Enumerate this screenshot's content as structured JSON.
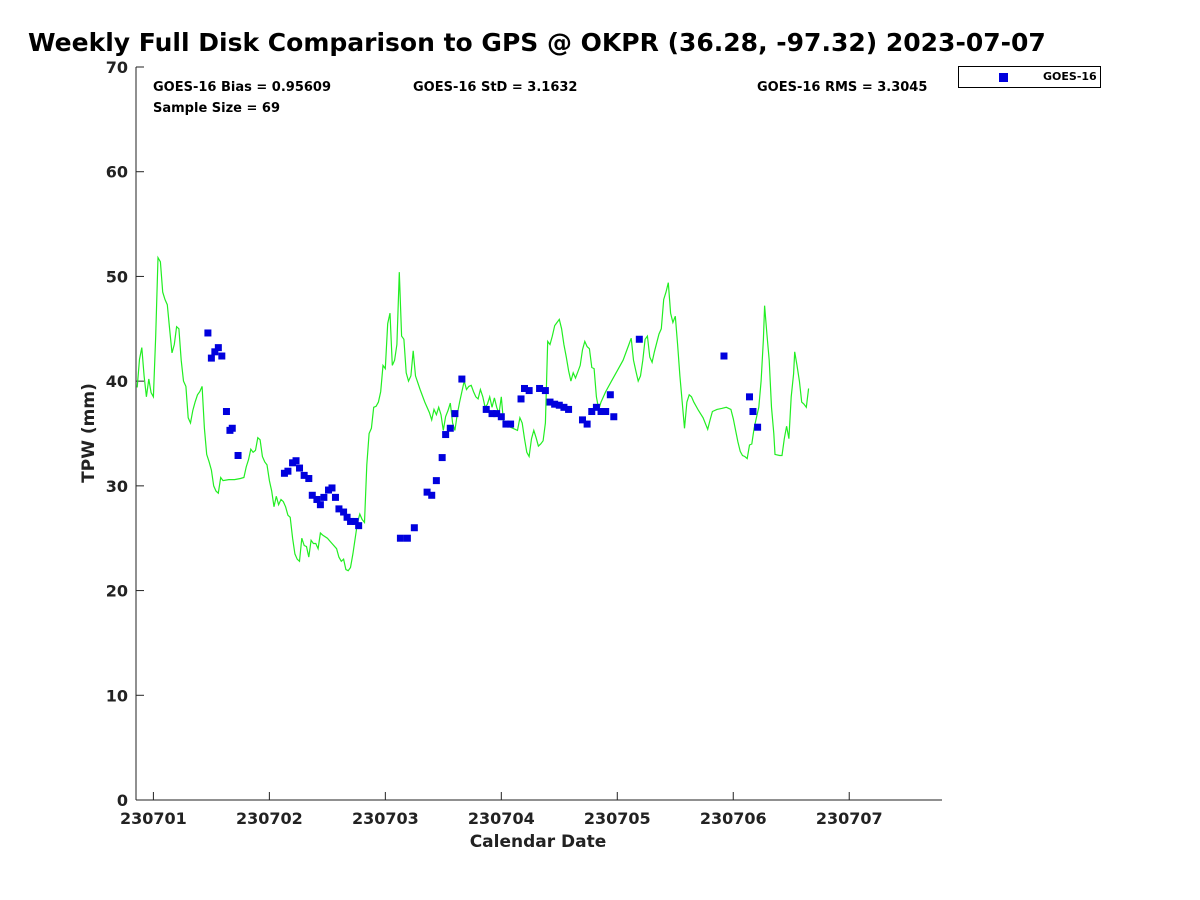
{
  "chart_data": {
    "type": "scatter",
    "title": "Weekly Full Disk Comparison to GPS @ OKPR (36.28, -97.32) 2023-07-07",
    "xlabel": "Calendar Date",
    "ylabel": "TPW (mm)",
    "ylim": [
      0,
      70
    ],
    "xlim": [
      -0.15,
      6.8
    ],
    "y_ticks": [
      0,
      10,
      20,
      30,
      40,
      50,
      60,
      70
    ],
    "x_ticks": [
      {
        "value": 0,
        "label": "230701"
      },
      {
        "value": 1,
        "label": "230702"
      },
      {
        "value": 2,
        "label": "230703"
      },
      {
        "value": 3,
        "label": "230704"
      },
      {
        "value": 4,
        "label": "230705"
      },
      {
        "value": 5,
        "label": "230706"
      },
      {
        "value": 6,
        "label": "230707"
      }
    ],
    "stats": {
      "bias": "GOES-16 Bias = 0.95609",
      "std": "GOES-16 StD = 3.1632",
      "rms": "GOES-16 RMS = 3.3045",
      "sample": "Sample Size = 69"
    },
    "legend": {
      "position": "top-right",
      "entries": [
        {
          "name": "GOES-16",
          "color": "#0000dd",
          "marker": "square"
        }
      ]
    },
    "gps_line": {
      "color": "#22ee22",
      "points": [
        [
          -0.14,
          39.4
        ],
        [
          -0.12,
          42.1
        ],
        [
          -0.1,
          43.2
        ],
        [
          -0.08,
          40.5
        ],
        [
          -0.06,
          38.5
        ],
        [
          -0.04,
          40.2
        ],
        [
          -0.02,
          38.9
        ],
        [
          0.0,
          38.5
        ],
        [
          0.02,
          44.3
        ],
        [
          0.04,
          51.8
        ],
        [
          0.06,
          51.4
        ],
        [
          0.08,
          48.5
        ],
        [
          0.1,
          47.8
        ],
        [
          0.12,
          47.3
        ],
        [
          0.14,
          45.0
        ],
        [
          0.16,
          42.7
        ],
        [
          0.18,
          43.5
        ],
        [
          0.2,
          45.2
        ],
        [
          0.22,
          45.0
        ],
        [
          0.24,
          42.0
        ],
        [
          0.26,
          40.0
        ],
        [
          0.28,
          39.5
        ],
        [
          0.3,
          36.5
        ],
        [
          0.32,
          36.0
        ],
        [
          0.34,
          37.2
        ],
        [
          0.36,
          38.0
        ],
        [
          0.38,
          38.7
        ],
        [
          0.4,
          39.0
        ],
        [
          0.42,
          39.5
        ],
        [
          0.44,
          35.5
        ],
        [
          0.46,
          33.0
        ],
        [
          0.48,
          32.3
        ],
        [
          0.5,
          31.5
        ],
        [
          0.52,
          30.0
        ],
        [
          0.54,
          29.5
        ],
        [
          0.56,
          29.3
        ],
        [
          0.58,
          30.8
        ],
        [
          0.6,
          30.5
        ],
        [
          0.65,
          30.6
        ],
        [
          0.7,
          30.6
        ],
        [
          0.75,
          30.7
        ],
        [
          0.78,
          30.8
        ],
        [
          0.8,
          31.8
        ],
        [
          0.82,
          32.5
        ],
        [
          0.84,
          33.5
        ],
        [
          0.86,
          33.2
        ],
        [
          0.88,
          33.4
        ],
        [
          0.9,
          34.6
        ],
        [
          0.92,
          34.4
        ],
        [
          0.94,
          32.8
        ],
        [
          0.96,
          32.3
        ],
        [
          0.98,
          32.0
        ],
        [
          1.0,
          30.5
        ],
        [
          1.02,
          29.5
        ],
        [
          1.04,
          28.0
        ],
        [
          1.06,
          29.0
        ],
        [
          1.08,
          28.2
        ],
        [
          1.1,
          28.7
        ],
        [
          1.12,
          28.5
        ],
        [
          1.14,
          28.0
        ],
        [
          1.16,
          27.2
        ],
        [
          1.18,
          27.0
        ],
        [
          1.2,
          25.0
        ],
        [
          1.22,
          23.5
        ],
        [
          1.24,
          23.0
        ],
        [
          1.26,
          22.8
        ],
        [
          1.28,
          25.0
        ],
        [
          1.3,
          24.3
        ],
        [
          1.32,
          24.2
        ],
        [
          1.34,
          23.2
        ],
        [
          1.36,
          24.8
        ],
        [
          1.38,
          24.5
        ],
        [
          1.4,
          24.5
        ],
        [
          1.42,
          24.0
        ],
        [
          1.44,
          25.5
        ],
        [
          1.46,
          25.3
        ],
        [
          1.5,
          25.0
        ],
        [
          1.54,
          24.5
        ],
        [
          1.58,
          24.0
        ],
        [
          1.6,
          23.2
        ],
        [
          1.62,
          22.8
        ],
        [
          1.64,
          23.0
        ],
        [
          1.66,
          22.0
        ],
        [
          1.68,
          21.9
        ],
        [
          1.7,
          22.2
        ],
        [
          1.72,
          23.5
        ],
        [
          1.74,
          25.0
        ],
        [
          1.76,
          26.5
        ],
        [
          1.78,
          27.3
        ],
        [
          1.8,
          26.8
        ],
        [
          1.82,
          26.5
        ],
        [
          1.84,
          32.0
        ],
        [
          1.86,
          35.0
        ],
        [
          1.88,
          35.5
        ],
        [
          1.9,
          37.5
        ],
        [
          1.92,
          37.6
        ],
        [
          1.94,
          38.0
        ],
        [
          1.96,
          39.0
        ],
        [
          1.98,
          41.5
        ],
        [
          2.0,
          41.2
        ],
        [
          2.02,
          45.5
        ],
        [
          2.04,
          46.5
        ],
        [
          2.06,
          41.5
        ],
        [
          2.08,
          42.0
        ],
        [
          2.1,
          43.5
        ],
        [
          2.12,
          50.4
        ],
        [
          2.14,
          44.3
        ],
        [
          2.16,
          44.0
        ],
        [
          2.18,
          40.8
        ],
        [
          2.2,
          40.0
        ],
        [
          2.22,
          40.5
        ],
        [
          2.24,
          42.9
        ],
        [
          2.26,
          40.5
        ],
        [
          2.3,
          39.2
        ],
        [
          2.34,
          38.0
        ],
        [
          2.38,
          37.0
        ],
        [
          2.4,
          36.3
        ],
        [
          2.42,
          37.3
        ],
        [
          2.44,
          36.8
        ],
        [
          2.46,
          37.5
        ],
        [
          2.48,
          36.8
        ],
        [
          2.5,
          35.3
        ],
        [
          2.52,
          36.6
        ],
        [
          2.54,
          37.2
        ],
        [
          2.56,
          37.9
        ],
        [
          2.58,
          36.0
        ],
        [
          2.6,
          35.3
        ],
        [
          2.62,
          36.8
        ],
        [
          2.64,
          38.0
        ],
        [
          2.66,
          39.0
        ],
        [
          2.68,
          40.0
        ],
        [
          2.7,
          39.2
        ],
        [
          2.72,
          39.5
        ],
        [
          2.74,
          39.6
        ],
        [
          2.76,
          39.0
        ],
        [
          2.78,
          38.5
        ],
        [
          2.8,
          38.3
        ],
        [
          2.82,
          39.2
        ],
        [
          2.84,
          38.5
        ],
        [
          2.86,
          37.5
        ],
        [
          2.88,
          37.8
        ],
        [
          2.9,
          38.5
        ],
        [
          2.92,
          37.5
        ],
        [
          2.94,
          38.4
        ],
        [
          2.96,
          37.5
        ],
        [
          2.98,
          36.9
        ],
        [
          3.0,
          38.5
        ],
        [
          3.02,
          36.0
        ],
        [
          3.06,
          35.7
        ],
        [
          3.1,
          35.5
        ],
        [
          3.14,
          35.3
        ],
        [
          3.16,
          36.5
        ],
        [
          3.18,
          36.0
        ],
        [
          3.2,
          34.5
        ],
        [
          3.22,
          33.2
        ],
        [
          3.24,
          32.8
        ],
        [
          3.26,
          34.5
        ],
        [
          3.28,
          35.3
        ],
        [
          3.3,
          34.6
        ],
        [
          3.32,
          33.8
        ],
        [
          3.34,
          34.0
        ],
        [
          3.36,
          34.3
        ],
        [
          3.38,
          36.0
        ],
        [
          3.4,
          43.8
        ],
        [
          3.42,
          43.5
        ],
        [
          3.44,
          44.3
        ],
        [
          3.46,
          45.3
        ],
        [
          3.48,
          45.6
        ],
        [
          3.5,
          45.9
        ],
        [
          3.52,
          45.0
        ],
        [
          3.54,
          43.5
        ],
        [
          3.56,
          42.3
        ],
        [
          3.58,
          41.0
        ],
        [
          3.6,
          40.0
        ],
        [
          3.62,
          40.8
        ],
        [
          3.64,
          40.3
        ],
        [
          3.66,
          40.9
        ],
        [
          3.68,
          41.5
        ],
        [
          3.7,
          43.0
        ],
        [
          3.72,
          43.8
        ],
        [
          3.74,
          43.3
        ],
        [
          3.76,
          43.1
        ],
        [
          3.78,
          41.3
        ],
        [
          3.8,
          41.2
        ],
        [
          3.82,
          38.5
        ],
        [
          3.84,
          37.3
        ],
        [
          3.86,
          38.0
        ],
        [
          3.9,
          39.0
        ],
        [
          3.95,
          40.0
        ],
        [
          4.0,
          41.0
        ],
        [
          4.05,
          42.0
        ],
        [
          4.1,
          43.5
        ],
        [
          4.12,
          44.1
        ],
        [
          4.14,
          42.0
        ],
        [
          4.16,
          41.0
        ],
        [
          4.18,
          40.0
        ],
        [
          4.2,
          40.5
        ],
        [
          4.22,
          42.0
        ],
        [
          4.24,
          44.0
        ],
        [
          4.26,
          44.3
        ],
        [
          4.28,
          42.3
        ],
        [
          4.3,
          41.8
        ],
        [
          4.32,
          42.8
        ],
        [
          4.36,
          44.5
        ],
        [
          4.38,
          45.0
        ],
        [
          4.4,
          47.8
        ],
        [
          4.42,
          48.5
        ],
        [
          4.44,
          49.4
        ],
        [
          4.46,
          46.5
        ],
        [
          4.48,
          45.6
        ],
        [
          4.5,
          46.2
        ],
        [
          4.52,
          43.5
        ],
        [
          4.54,
          40.5
        ],
        [
          4.56,
          38.0
        ],
        [
          4.58,
          35.5
        ],
        [
          4.6,
          38.0
        ],
        [
          4.62,
          38.7
        ],
        [
          4.64,
          38.5
        ],
        [
          4.66,
          38.0
        ],
        [
          4.7,
          37.2
        ],
        [
          4.74,
          36.5
        ],
        [
          4.78,
          35.4
        ],
        [
          4.8,
          36.3
        ],
        [
          4.82,
          37.1
        ],
        [
          4.86,
          37.3
        ],
        [
          4.9,
          37.4
        ],
        [
          4.94,
          37.5
        ],
        [
          4.98,
          37.3
        ],
        [
          5.0,
          36.4
        ],
        [
          5.02,
          35.3
        ],
        [
          5.04,
          34.2
        ],
        [
          5.06,
          33.3
        ],
        [
          5.08,
          32.9
        ],
        [
          5.1,
          32.8
        ],
        [
          5.12,
          32.6
        ],
        [
          5.14,
          33.9
        ],
        [
          5.16,
          34.0
        ],
        [
          5.18,
          35.5
        ],
        [
          5.2,
          36.5
        ],
        [
          5.22,
          37.5
        ],
        [
          5.24,
          40.0
        ],
        [
          5.26,
          44.0
        ],
        [
          5.27,
          47.2
        ],
        [
          5.29,
          44.5
        ],
        [
          5.31,
          42.0
        ],
        [
          5.33,
          37.5
        ],
        [
          5.35,
          35.0
        ],
        [
          5.36,
          33.0
        ],
        [
          5.4,
          32.9
        ],
        [
          5.42,
          32.9
        ],
        [
          5.44,
          34.5
        ],
        [
          5.46,
          35.7
        ],
        [
          5.48,
          34.5
        ],
        [
          5.5,
          38.5
        ],
        [
          5.52,
          40.7
        ],
        [
          5.53,
          42.8
        ],
        [
          5.55,
          41.5
        ],
        [
          5.57,
          40.0
        ],
        [
          5.59,
          38.0
        ],
        [
          5.61,
          37.8
        ],
        [
          5.63,
          37.5
        ],
        [
          5.65,
          39.3
        ]
      ]
    },
    "series": [
      {
        "name": "GOES-16",
        "color": "#0000dd",
        "points": [
          [
            0.47,
            44.6
          ],
          [
            0.5,
            42.2
          ],
          [
            0.53,
            42.8
          ],
          [
            0.56,
            43.2
          ],
          [
            0.59,
            42.4
          ],
          [
            0.63,
            37.1
          ],
          [
            0.66,
            35.3
          ],
          [
            0.68,
            35.5
          ],
          [
            0.73,
            32.9
          ],
          [
            1.13,
            31.2
          ],
          [
            1.16,
            31.4
          ],
          [
            1.2,
            32.2
          ],
          [
            1.23,
            32.4
          ],
          [
            1.26,
            31.7
          ],
          [
            1.3,
            31.0
          ],
          [
            1.34,
            30.7
          ],
          [
            1.37,
            29.1
          ],
          [
            1.41,
            28.7
          ],
          [
            1.44,
            28.2
          ],
          [
            1.47,
            28.9
          ],
          [
            1.51,
            29.6
          ],
          [
            1.54,
            29.8
          ],
          [
            1.57,
            28.9
          ],
          [
            1.6,
            27.8
          ],
          [
            1.64,
            27.5
          ],
          [
            1.67,
            27.0
          ],
          [
            1.7,
            26.6
          ],
          [
            1.74,
            26.6
          ],
          [
            1.77,
            26.2
          ],
          [
            2.13,
            25.0
          ],
          [
            2.19,
            25.0
          ],
          [
            2.25,
            26.0
          ],
          [
            2.36,
            29.4
          ],
          [
            2.4,
            29.1
          ],
          [
            2.44,
            30.5
          ],
          [
            2.49,
            32.7
          ],
          [
            2.52,
            34.9
          ],
          [
            2.56,
            35.5
          ],
          [
            2.6,
            36.9
          ],
          [
            2.66,
            40.2
          ],
          [
            2.87,
            37.3
          ],
          [
            2.92,
            36.9
          ],
          [
            2.96,
            36.9
          ],
          [
            3.0,
            36.6
          ],
          [
            3.04,
            35.9
          ],
          [
            3.08,
            35.9
          ],
          [
            3.17,
            38.3
          ],
          [
            3.2,
            39.3
          ],
          [
            3.24,
            39.1
          ],
          [
            3.33,
            39.3
          ],
          [
            3.38,
            39.1
          ],
          [
            3.42,
            38.0
          ],
          [
            3.46,
            37.8
          ],
          [
            3.5,
            37.7
          ],
          [
            3.54,
            37.5
          ],
          [
            3.58,
            37.3
          ],
          [
            3.7,
            36.3
          ],
          [
            3.74,
            35.9
          ],
          [
            3.78,
            37.1
          ],
          [
            3.82,
            37.5
          ],
          [
            3.86,
            37.1
          ],
          [
            3.9,
            37.1
          ],
          [
            3.94,
            38.7
          ],
          [
            3.97,
            36.6
          ],
          [
            4.19,
            44.0
          ],
          [
            4.92,
            42.4
          ],
          [
            5.14,
            38.5
          ],
          [
            5.17,
            37.1
          ],
          [
            5.21,
            35.6
          ]
        ]
      }
    ]
  }
}
